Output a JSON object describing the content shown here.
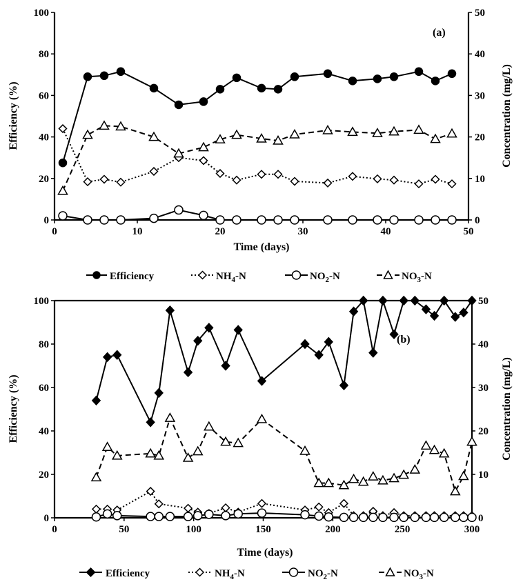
{
  "chart_data": [
    {
      "type": "line",
      "panel_label": "(a)",
      "xlabel": "Time (days)",
      "ylabel": "Efficiency  (%)",
      "y2label": "Concentration (mg/L)",
      "xlim": [
        0,
        50
      ],
      "xticks": [
        "0",
        "10",
        "20",
        "30",
        "40",
        "50"
      ],
      "ylim": [
        0,
        100
      ],
      "yticks": [
        "0",
        "20",
        "40",
        "60",
        "80",
        "100"
      ],
      "y2lim": [
        0,
        50
      ],
      "y2ticks": [
        "0",
        "10",
        "20",
        "30",
        "40",
        "50"
      ],
      "grid": false,
      "legend_position": "bottom",
      "series": [
        {
          "name": "Efficiency",
          "axis": "left",
          "line": "solid",
          "marker": "circle-filled",
          "x": [
            1,
            4,
            6,
            8,
            12,
            15,
            18,
            20,
            22,
            25,
            27,
            29,
            33,
            36,
            39,
            41,
            44,
            46,
            48
          ],
          "y": [
            27.5,
            69,
            69.5,
            71.5,
            63.5,
            55.5,
            57,
            63,
            68.5,
            63.5,
            63,
            69,
            70.5,
            67,
            68,
            69,
            71.5,
            67,
            70.5
          ]
        },
        {
          "name": "NH4-N",
          "axis": "right",
          "line": "dotted",
          "marker": "diamond-open",
          "x": [
            1,
            4,
            6,
            8,
            12,
            15,
            18,
            20,
            22,
            25,
            27,
            29,
            33,
            36,
            39,
            41,
            44,
            46,
            48
          ],
          "y": [
            22,
            9.2,
            9.8,
            9.1,
            11.7,
            15,
            14.3,
            11.2,
            9.6,
            11,
            11,
            9.3,
            8.9,
            10.5,
            9.9,
            9.6,
            8.7,
            9.8,
            8.7
          ]
        },
        {
          "name": "NO2-N",
          "axis": "right",
          "line": "solid",
          "marker": "circle-open",
          "x": [
            1,
            4,
            6,
            8,
            12,
            15,
            18,
            20,
            22,
            25,
            27,
            29,
            33,
            36,
            39,
            41,
            44,
            46,
            48
          ],
          "y": [
            1,
            0,
            0,
            0,
            0.4,
            2.4,
            1.1,
            0,
            0,
            0,
            0,
            0,
            0,
            0,
            0,
            0,
            0,
            0,
            0
          ]
        },
        {
          "name": "NO3-N",
          "axis": "right",
          "line": "dashed",
          "marker": "triangle-open",
          "x": [
            1,
            4,
            6,
            8,
            12,
            15,
            18,
            20,
            22,
            25,
            27,
            29,
            33,
            36,
            39,
            41,
            44,
            46,
            48
          ],
          "y": [
            7,
            20.5,
            22.7,
            22.5,
            20,
            16,
            17.5,
            19.4,
            20.5,
            19.6,
            19.1,
            20.6,
            21.6,
            21.2,
            20.9,
            21.3,
            21.7,
            19.5,
            20.8
          ]
        }
      ]
    },
    {
      "type": "line",
      "panel_label": "(b)",
      "xlabel": "Time (days)",
      "ylabel": "Efficiency (%)",
      "y2label": "Concentration (mg/L)",
      "xlim": [
        0,
        300
      ],
      "xticks": [
        "0",
        "50",
        "100",
        "150",
        "200",
        "250",
        "300"
      ],
      "ylim": [
        0,
        100
      ],
      "yticks": [
        "0",
        "20",
        "40",
        "60",
        "80",
        "100"
      ],
      "y2lim": [
        0,
        50
      ],
      "y2ticks": [
        "0",
        "10",
        "20",
        "30",
        "40",
        "50"
      ],
      "grid": false,
      "legend_position": "bottom",
      "series": [
        {
          "name": "Efficiency",
          "axis": "left",
          "line": "solid",
          "marker": "diamond-filled",
          "x": [
            30,
            38,
            45,
            69,
            75,
            83,
            96,
            103,
            111,
            123,
            132,
            149,
            180,
            190,
            197,
            208,
            215,
            222,
            229,
            236,
            244,
            251,
            259,
            267,
            273,
            280,
            288,
            294,
            300
          ],
          "y": [
            54,
            74,
            75,
            44,
            57.5,
            95.5,
            67,
            81.5,
            87.5,
            70,
            86.5,
            63,
            80,
            75,
            81,
            61,
            95,
            100,
            76,
            100,
            84.5,
            100,
            100,
            96,
            93,
            100,
            92.5,
            94.5,
            100
          ]
        },
        {
          "name": "NH4-N",
          "axis": "right",
          "line": "dotted",
          "marker": "diamond-open",
          "x": [
            30,
            38,
            45,
            69,
            75,
            96,
            103,
            111,
            123,
            132,
            149,
            180,
            190,
            197,
            208,
            215,
            222,
            229,
            236,
            244,
            251,
            259,
            267,
            273,
            280,
            288,
            294,
            300
          ],
          "y": [
            2,
            2,
            1.8,
            6.1,
            3.2,
            2.2,
            1.3,
            1,
            2.3,
            1.3,
            3.3,
            1.8,
            2.5,
            1.2,
            3.3,
            0.5,
            0.5,
            1.5,
            0.5,
            1.2,
            0.5,
            0.5,
            0.5,
            0.5,
            0.5,
            0.5,
            0.5,
            0.5
          ]
        },
        {
          "name": "NO2-N",
          "axis": "right",
          "line": "solid",
          "marker": "circle-open",
          "x": [
            30,
            38,
            45,
            69,
            75,
            83,
            96,
            103,
            111,
            123,
            132,
            149,
            180,
            190,
            197,
            208,
            215,
            222,
            229,
            236,
            244,
            251,
            259,
            267,
            273,
            280,
            288,
            294,
            300
          ],
          "y": [
            0.2,
            0.9,
            0.5,
            0.3,
            0.3,
            0.3,
            0.3,
            0.5,
            0.8,
            0.5,
            0.9,
            1.1,
            0.7,
            0.4,
            0.2,
            0.1,
            0.1,
            0.1,
            0.1,
            0.1,
            0.1,
            0.1,
            0.1,
            0.1,
            0.1,
            0.1,
            0.1,
            0.1,
            0.1
          ]
        },
        {
          "name": "NO3-N",
          "axis": "right",
          "line": "dashed",
          "marker": "triangle-open",
          "x": [
            30,
            38,
            45,
            69,
            75,
            83,
            96,
            103,
            111,
            123,
            132,
            149,
            180,
            190,
            197,
            208,
            215,
            222,
            229,
            236,
            244,
            251,
            259,
            267,
            273,
            280,
            288,
            294,
            300
          ],
          "y": [
            9.3,
            16.3,
            14.3,
            14.8,
            14.3,
            23,
            13.8,
            15.3,
            21,
            17.5,
            17.2,
            22.7,
            15.4,
            8,
            8,
            7.5,
            8.9,
            8.3,
            9.5,
            8.6,
            9.1,
            9.9,
            11.1,
            16.6,
            15.6,
            14.8,
            6.1,
            9.6,
            17.5
          ]
        }
      ]
    }
  ],
  "legend_a": {
    "efficiency": "Efficiency",
    "nh4_base": "NH",
    "nh4_sub": "4",
    "nh4_tail": "-N",
    "no2_base": "NO",
    "no2_sub": "2",
    "no2_tail": "-N",
    "no3_base": "NO",
    "no3_sub": "3",
    "no3_tail": "-N"
  },
  "legend_b": {
    "efficiency": "Efficiency",
    "nh4_base": "NH",
    "nh4_sub": "4",
    "nh4_tail": "-N",
    "no2_base": "NO",
    "no2_sub": "2",
    "no2_tail": "-N",
    "no3_base": "NO",
    "no3_sub": "3",
    "no3_tail": "-N"
  },
  "colors": {
    "ink": "#000000",
    "background": "#ffffff"
  }
}
